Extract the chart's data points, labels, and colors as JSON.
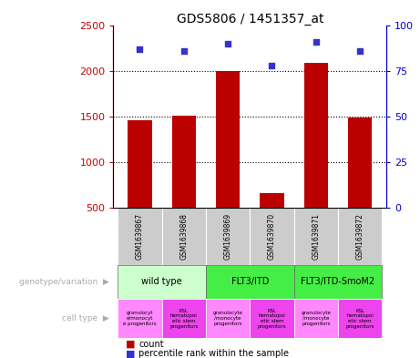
{
  "title": "GDS5806 / 1451357_at",
  "samples": [
    "GSM1639867",
    "GSM1639868",
    "GSM1639869",
    "GSM1639870",
    "GSM1639871",
    "GSM1639872"
  ],
  "counts": [
    1460,
    1510,
    2000,
    660,
    2090,
    1490
  ],
  "percentile_ranks": [
    87,
    86,
    90,
    78,
    91,
    86
  ],
  "ylim_left": [
    500,
    2500
  ],
  "yticks_left": [
    500,
    1000,
    1500,
    2000,
    2500
  ],
  "ylim_right": [
    0,
    100
  ],
  "yticks_right": [
    0,
    25,
    50,
    75,
    100
  ],
  "bar_color": "#bb0000",
  "dot_color": "#3333cc",
  "bar_width": 0.55,
  "genotype_groups": [
    {
      "label": "wild type",
      "start": 0,
      "end": 1,
      "color": "#ccffcc"
    },
    {
      "label": "FLT3/ITD",
      "start": 2,
      "end": 3,
      "color": "#44ee44"
    },
    {
      "label": "FLT3/ITD-SmoM2",
      "start": 4,
      "end": 5,
      "color": "#44ee44"
    }
  ],
  "cell_labels": [
    "granulocyt\ne/monocyt\ne progenitors",
    "KSL\nhematopoi\netic stem\nprogenitors",
    "granulocyte\n/monocyte\nprogenitors",
    "KSL\nhematopoi\netic stem\nprogenitors",
    "granulocyte\n/monocyte\nprogenitors",
    "KSL\nhematopoi\netic stem\nprogenitors"
  ],
  "cell_color_light": "#ff88ff",
  "cell_color_dark": "#ee44ee",
  "legend_count_color": "#bb0000",
  "legend_dot_color": "#3333cc",
  "background_color": "#ffffff",
  "sample_bg_color": "#cccccc",
  "ylabel_left_color": "#cc0000",
  "ylabel_right_color": "#0000cc",
  "left_label_color": "#aaaaaa",
  "grid_dotted_color": "#000000"
}
